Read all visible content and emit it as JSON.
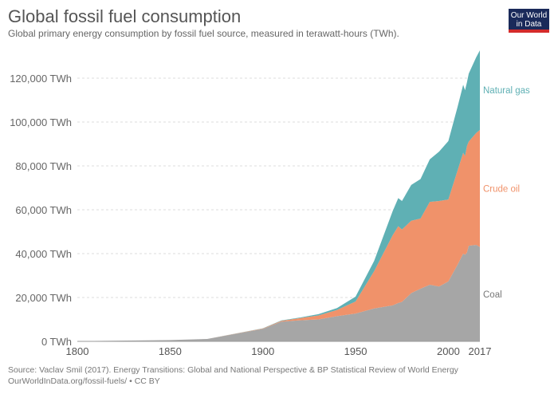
{
  "header": {
    "title": "Global fossil fuel consumption",
    "subtitle": "Global primary energy consumption by fossil fuel source, measured in terawatt-hours (TWh).",
    "logo": "Our World in Data"
  },
  "footer": {
    "source": "Source: Vaclav Smil (2017). Energy Transitions: Global and National Perspective & BP Statistical Review of World Energy",
    "url": "OurWorldInData.org/fossil-fuels/ • CC BY"
  },
  "chart_data": {
    "type": "area",
    "stacked": true,
    "title": "Global fossil fuel consumption",
    "xlabel": "",
    "ylabel": "",
    "xlim": [
      1800,
      2017
    ],
    "ylim": [
      0,
      135000
    ],
    "grid": true,
    "legend": "right-inline",
    "x_ticks": [
      "1800",
      "1850",
      "1900",
      "1950",
      "2000",
      "2017"
    ],
    "y_ticks": [
      {
        "v": 0,
        "label": "0 TWh"
      },
      {
        "v": 20000,
        "label": "20,000 TWh"
      },
      {
        "v": 40000,
        "label": "40,000 TWh"
      },
      {
        "v": 60000,
        "label": "60,000 TWh"
      },
      {
        "v": 80000,
        "label": "80,000 TWh"
      },
      {
        "v": 100000,
        "label": "100,000 TWh"
      },
      {
        "v": 120000,
        "label": "120,000 TWh"
      }
    ],
    "x": [
      1800,
      1850,
      1870,
      1900,
      1910,
      1920,
      1930,
      1940,
      1950,
      1960,
      1970,
      1973,
      1975,
      1980,
      1985,
      1990,
      1995,
      2000,
      2005,
      2008,
      2009,
      2010,
      2011,
      2015,
      2017
    ],
    "series": [
      {
        "name": "Coal",
        "color": "#a6a6a6",
        "values": [
          97,
          570,
          1100,
          5700,
          9000,
          9600,
          10000,
          11500,
          12700,
          15000,
          16400,
          17500,
          18000,
          22000,
          24000,
          25800,
          25000,
          27300,
          35000,
          40000,
          39500,
          40400,
          43600,
          44000,
          43000
        ]
      },
      {
        "name": "Crude oil",
        "color": "#f0926a",
        "values": [
          0,
          0,
          10,
          180,
          380,
          1000,
          1800,
          2800,
          5500,
          17000,
          32000,
          35000,
          33000,
          33000,
          32000,
          37800,
          39000,
          37400,
          43000,
          46000,
          45000,
          48600,
          47500,
          51000,
          53400
        ]
      },
      {
        "name": "Natural gas",
        "color": "#5fb0b4",
        "values": [
          0,
          0,
          0,
          60,
          150,
          250,
          600,
          900,
          2200,
          4700,
          11000,
          12800,
          13000,
          16300,
          18000,
          19400,
          22500,
          26600,
          29000,
          31000,
          30000,
          29000,
          31000,
          34500,
          36300
        ]
      }
    ]
  }
}
